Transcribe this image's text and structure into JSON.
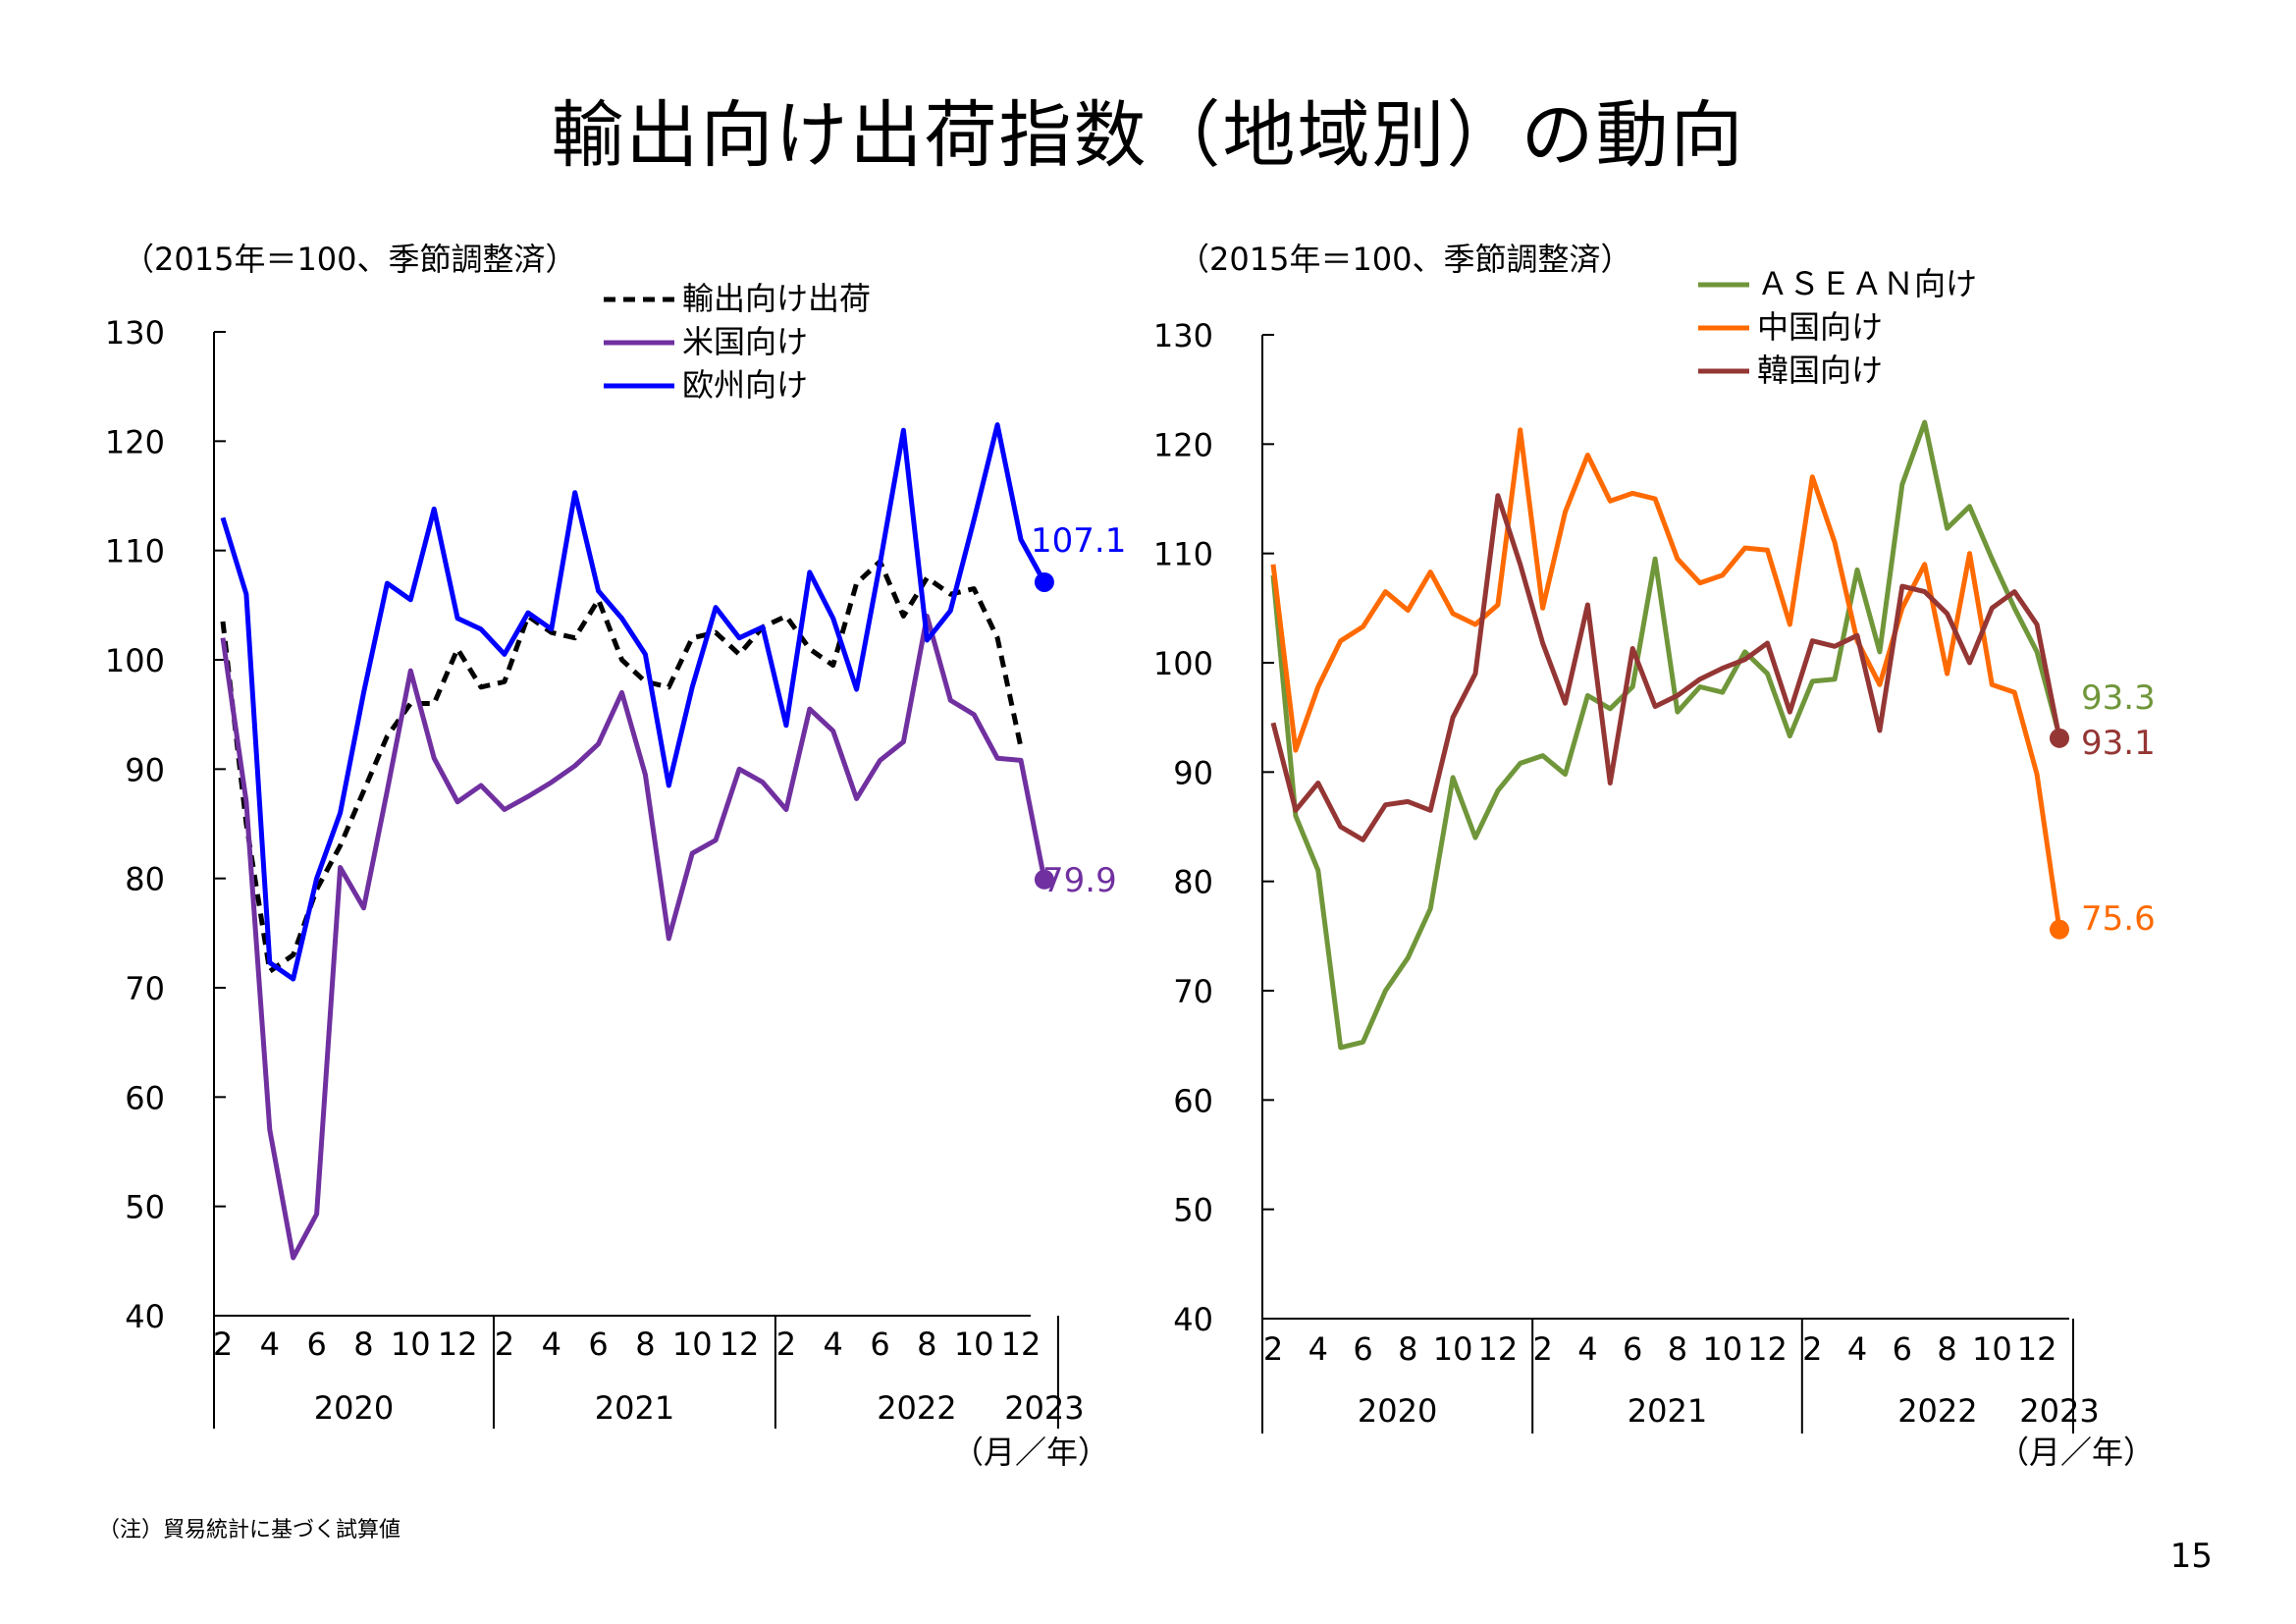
{
  "title": "輸出向け出荷指数（地域別）の動向",
  "footnote": "（注）貿易統計に基づく試算値",
  "page_number": "15",
  "chart_data": [
    {
      "type": "line",
      "unit_note": "（2015年＝100、季節調整済）",
      "axis_unit": "（月／年）",
      "ylim": [
        40,
        130
      ],
      "yticks": [
        40,
        50,
        60,
        70,
        80,
        90,
        100,
        110,
        120,
        130
      ],
      "month_ticks": [
        "2",
        "4",
        "6",
        "8",
        "10",
        "12",
        "2",
        "4",
        "6",
        "8",
        "10",
        "12",
        "2",
        "4",
        "6",
        "8",
        "10",
        "12"
      ],
      "year_labels": [
        "2020",
        "2021",
        "2022",
        "2023"
      ],
      "grid": false,
      "legend": "top",
      "series": [
        {
          "name": "輸出向け出荷",
          "color": "#000000",
          "dash": true,
          "end_marker": false,
          "end_label": "",
          "values": [
            103.5,
            85,
            71.5,
            73,
            79,
            83,
            88,
            93,
            96,
            96,
            101,
            97.5,
            98,
            104,
            102.5,
            102,
            105.5,
            100,
            98,
            97.5,
            102,
            102.5,
            100.5,
            103,
            104,
            101,
            99.5,
            107,
            109,
            104,
            107.5,
            106,
            106.5,
            102,
            92
          ]
        },
        {
          "name": "米国向け",
          "color": "#7030a0",
          "dash": false,
          "end_marker": true,
          "end_label": "79.9",
          "values": [
            102,
            87,
            57,
            45.3,
            49.3,
            81,
            77.3,
            88,
            99,
            91,
            87,
            88.5,
            86.3,
            87.5,
            88.8,
            90.3,
            92.3,
            97,
            89.5,
            74.5,
            82.3,
            83.5,
            90,
            88.8,
            86.3,
            95.5,
            93.5,
            87.3,
            90.8,
            92.5,
            104,
            96.3,
            95,
            91,
            90.8,
            79.9
          ]
        },
        {
          "name": "欧州向け",
          "color": "#0000ff",
          "dash": false,
          "end_marker": true,
          "end_label": "107.1",
          "values": [
            113,
            106,
            72.3,
            70.8,
            80,
            86,
            97,
            107,
            105.5,
            113.8,
            103.8,
            102.8,
            100.5,
            104.3,
            102.8,
            115.3,
            106.3,
            103.8,
            100.5,
            88.5,
            97.5,
            104.8,
            102,
            103,
            94,
            108,
            103.8,
            97.3,
            108.8,
            121,
            101.8,
            104.5,
            112.8,
            121.5,
            111,
            107.1
          ]
        }
      ]
    },
    {
      "type": "line",
      "unit_note": "（2015年＝100、季節調整済）",
      "axis_unit": "（月／年）",
      "ylim": [
        40,
        130
      ],
      "yticks": [
        40,
        50,
        60,
        70,
        80,
        90,
        100,
        110,
        120,
        130
      ],
      "month_ticks": [
        "2",
        "4",
        "6",
        "8",
        "10",
        "12",
        "2",
        "4",
        "6",
        "8",
        "10",
        "12",
        "2",
        "4",
        "6",
        "8",
        "10",
        "12"
      ],
      "year_labels": [
        "2020",
        "2021",
        "2022",
        "2023"
      ],
      "grid": false,
      "legend": "top",
      "series": [
        {
          "name": "ＡＳＥＡＮ向け",
          "color": "#70963a",
          "dash": false,
          "end_marker": false,
          "end_label": "93.3",
          "values": [
            108,
            86,
            81,
            64.8,
            65.3,
            70,
            73,
            77.5,
            89.5,
            84,
            88.3,
            90.8,
            91.5,
            89.8,
            97,
            95.8,
            97.8,
            109.5,
            95.5,
            97.8,
            97.3,
            101,
            99,
            93.3,
            98.3,
            98.5,
            108.5,
            101,
            116.3,
            122,
            112.3,
            114.3,
            109.5,
            105,
            101,
            93.3
          ]
        },
        {
          "name": "中国向け",
          "color": "#ff6a00",
          "dash": false,
          "end_marker": true,
          "end_label": "75.6",
          "values": [
            109,
            92,
            97.8,
            102,
            103.3,
            106.5,
            104.8,
            108.3,
            104.5,
            103.5,
            105.3,
            121.3,
            105,
            113.8,
            119,
            114.8,
            115.5,
            115,
            109.5,
            107.3,
            108,
            110.5,
            110.3,
            103.5,
            117,
            111,
            102,
            98,
            105,
            109,
            99,
            110,
            98,
            97.3,
            89.8,
            75.6
          ]
        },
        {
          "name": "韓国向け",
          "color": "#943634",
          "dash": false,
          "end_marker": true,
          "end_label": "93.1",
          "values": [
            94.5,
            86.5,
            89,
            85,
            83.8,
            87,
            87.3,
            86.5,
            95,
            99,
            115.3,
            109,
            101.8,
            96.3,
            105.3,
            89,
            101.3,
            96,
            97,
            98.5,
            99.5,
            100.3,
            101.8,
            95.5,
            102,
            101.5,
            102.5,
            93.8,
            107,
            106.5,
            104.5,
            100,
            105,
            106.5,
            103.5,
            93.1
          ]
        }
      ]
    }
  ]
}
